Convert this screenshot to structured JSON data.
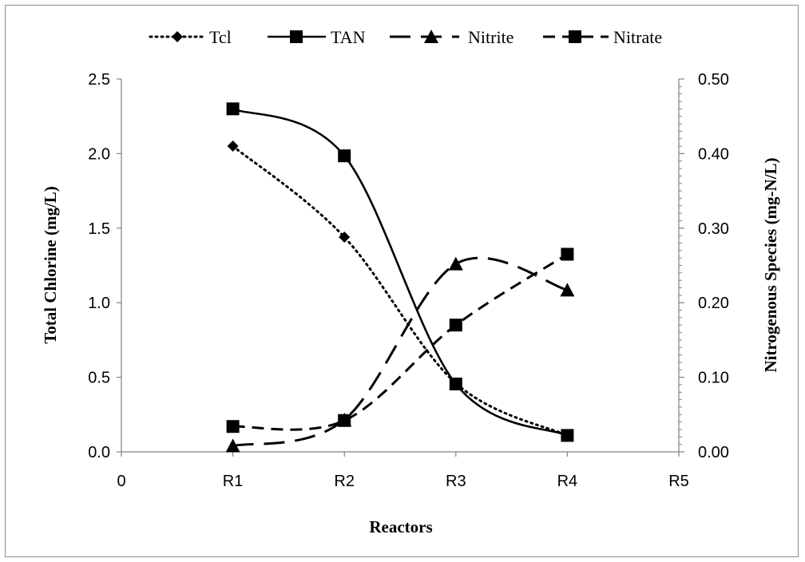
{
  "chart_data": {
    "type": "line",
    "x_tick_labels": [
      "0",
      "R1",
      "R2",
      "R3",
      "R4",
      "R5"
    ],
    "xlabel": "Reactors",
    "ylabel_left": "Total Chlorine (mg/L)",
    "ylabel_right": "Nitrogenous Species (mg-N/L)",
    "ylim_left": [
      0,
      2.5
    ],
    "ylim_right": [
      0,
      0.5
    ],
    "left_ticks": [
      "0.0",
      "0.5",
      "1.0",
      "1.5",
      "2.0",
      "2.5"
    ],
    "right_ticks": [
      "0.00",
      "0.10",
      "0.20",
      "0.30",
      "0.40",
      "0.50"
    ],
    "grid": false,
    "legend_position": "top",
    "series": [
      {
        "name": "Tcl",
        "axis": "left",
        "x": [
          "R1",
          "R2",
          "R3",
          "R4"
        ],
        "values": [
          2.05,
          1.44,
          0.46,
          0.11
        ],
        "line": "dotted",
        "marker": "diamond"
      },
      {
        "name": "TAN",
        "axis": "right",
        "x": [
          "R1",
          "R2",
          "R3",
          "R4"
        ],
        "values": [
          0.46,
          0.397,
          0.091,
          0.022
        ],
        "line": "solid",
        "marker": "square"
      },
      {
        "name": "Nitrite",
        "axis": "right",
        "x": [
          "R1",
          "R2",
          "R3",
          "R4"
        ],
        "values": [
          0.008,
          0.043,
          0.252,
          0.217
        ],
        "line": "long-dash",
        "marker": "triangle"
      },
      {
        "name": "Nitrate",
        "axis": "right",
        "x": [
          "R1",
          "R2",
          "R3",
          "R4"
        ],
        "values": [
          0.034,
          0.042,
          0.17,
          0.265
        ],
        "line": "dash",
        "marker": "square"
      }
    ]
  },
  "colors": {
    "line": "#000000",
    "frame": "#8c8c8c",
    "axis": "#808080"
  }
}
